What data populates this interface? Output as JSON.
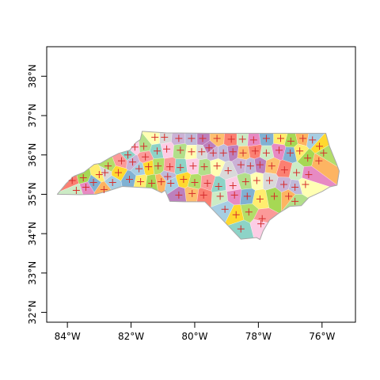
{
  "map": {
    "x_ticks": [
      {
        "lon": -84,
        "label": "84°W"
      },
      {
        "lon": -82,
        "label": "82°W"
      },
      {
        "lon": -80,
        "label": "80°W"
      },
      {
        "lon": -78,
        "label": "78°W"
      },
      {
        "lon": -76,
        "label": "76°W"
      }
    ],
    "y_ticks": [
      {
        "lat": 32,
        "label": "32°N"
      },
      {
        "lat": 33,
        "label": "33°N"
      },
      {
        "lat": 34,
        "label": "34°N"
      },
      {
        "lat": 35,
        "label": "35°N"
      },
      {
        "lat": 36,
        "label": "36°N"
      },
      {
        "lat": 37,
        "label": "37°N"
      },
      {
        "lat": 38,
        "label": "38°N"
      }
    ],
    "xlim": [
      -84.65,
      -74.95
    ],
    "ylim": [
      31.75,
      38.75
    ],
    "palette": [
      "#8dd3c7",
      "#ffffb3",
      "#bebada",
      "#fb8072",
      "#80b1d3",
      "#fdb462",
      "#b3de69",
      "#fccde5",
      "#d9d9d9",
      "#bc80bd",
      "#ccebc5",
      "#ffed6f",
      "#a6cee3",
      "#fb9a99",
      "#b2df8a",
      "#cab2d6",
      "#fdbf6f",
      "#e78ac3",
      "#a6d854",
      "#ffd92f"
    ],
    "state_outline": [
      [
        -84.32,
        35.0
      ],
      [
        -84.03,
        35.28
      ],
      [
        -83.8,
        35.46
      ],
      [
        -83.48,
        35.56
      ],
      [
        -83.16,
        35.76
      ],
      [
        -82.96,
        35.79
      ],
      [
        -82.64,
        35.94
      ],
      [
        -82.39,
        36.04
      ],
      [
        -82.04,
        36.12
      ],
      [
        -81.84,
        36.32
      ],
      [
        -81.71,
        36.39
      ],
      [
        -81.65,
        36.6
      ],
      [
        -80.9,
        36.56
      ],
      [
        -79.5,
        36.55
      ],
      [
        -78.0,
        36.55
      ],
      [
        -76.9,
        36.55
      ],
      [
        -75.88,
        36.55
      ],
      [
        -75.77,
        36.23
      ],
      [
        -75.55,
        35.79
      ],
      [
        -75.46,
        35.59
      ],
      [
        -75.53,
        35.23
      ],
      [
        -75.75,
        35.19
      ],
      [
        -76.0,
        35.07
      ],
      [
        -76.41,
        34.92
      ],
      [
        -76.65,
        34.71
      ],
      [
        -77.02,
        34.69
      ],
      [
        -77.36,
        34.52
      ],
      [
        -77.65,
        34.34
      ],
      [
        -77.85,
        34.07
      ],
      [
        -77.95,
        33.85
      ],
      [
        -78.06,
        33.9
      ],
      [
        -78.55,
        33.86
      ],
      [
        -79.07,
        34.3
      ],
      [
        -79.46,
        34.63
      ],
      [
        -79.68,
        34.81
      ],
      [
        -80.32,
        34.81
      ],
      [
        -80.78,
        34.82
      ],
      [
        -80.93,
        35.1
      ],
      [
        -81.04,
        35.04
      ],
      [
        -81.35,
        35.16
      ],
      [
        -82.28,
        35.2
      ],
      [
        -82.77,
        35.07
      ],
      [
        -83.11,
        35.0
      ],
      [
        -83.62,
        34.99
      ],
      [
        -84.32,
        35.0
      ]
    ],
    "centroids": [
      [
        -83.85,
        35.35
      ],
      [
        -83.72,
        35.1
      ],
      [
        -83.42,
        35.18
      ],
      [
        -83.18,
        35.3
      ],
      [
        -83.0,
        35.5
      ],
      [
        -83.5,
        35.42
      ],
      [
        -82.85,
        35.12
      ],
      [
        -82.58,
        35.3
      ],
      [
        -82.4,
        35.55
      ],
      [
        -82.72,
        35.72
      ],
      [
        -82.3,
        35.85
      ],
      [
        -82.1,
        36.0
      ],
      [
        -81.88,
        36.2
      ],
      [
        -81.6,
        36.22
      ],
      [
        -81.25,
        36.45
      ],
      [
        -80.95,
        36.45
      ],
      [
        -80.5,
        36.42
      ],
      [
        -80.1,
        36.42
      ],
      [
        -79.75,
        36.42
      ],
      [
        -79.3,
        36.42
      ],
      [
        -78.85,
        36.4
      ],
      [
        -78.5,
        36.4
      ],
      [
        -78.15,
        36.38
      ],
      [
        -77.75,
        36.42
      ],
      [
        -77.3,
        36.42
      ],
      [
        -76.98,
        36.35
      ],
      [
        -76.6,
        36.42
      ],
      [
        -76.3,
        36.38
      ],
      [
        -76.08,
        36.22
      ],
      [
        -75.95,
        36.05
      ],
      [
        -81.55,
        35.95
      ],
      [
        -81.18,
        36.1
      ],
      [
        -80.88,
        36.15
      ],
      [
        -80.45,
        36.12
      ],
      [
        -80.1,
        36.08
      ],
      [
        -79.78,
        36.08
      ],
      [
        -79.42,
        36.05
      ],
      [
        -79.1,
        36.05
      ],
      [
        -78.8,
        36.08
      ],
      [
        -78.48,
        36.05
      ],
      [
        -78.1,
        36.1
      ],
      [
        -77.75,
        36.05
      ],
      [
        -77.35,
        36.12
      ],
      [
        -77.0,
        36.05
      ],
      [
        -76.7,
        36.1
      ],
      [
        -76.45,
        35.92
      ],
      [
        -76.1,
        35.85
      ],
      [
        -81.75,
        35.65
      ],
      [
        -81.45,
        35.7
      ],
      [
        -81.15,
        35.72
      ],
      [
        -80.78,
        35.7
      ],
      [
        -80.45,
        35.68
      ],
      [
        -80.05,
        35.72
      ],
      [
        -79.7,
        35.7
      ],
      [
        -79.3,
        35.72
      ],
      [
        -78.95,
        35.6
      ],
      [
        -78.55,
        35.75
      ],
      [
        -78.25,
        35.72
      ],
      [
        -77.95,
        35.75
      ],
      [
        -77.58,
        35.72
      ],
      [
        -77.18,
        35.62
      ],
      [
        -76.8,
        35.55
      ],
      [
        -76.42,
        35.5
      ],
      [
        -82.05,
        35.38
      ],
      [
        -81.7,
        35.32
      ],
      [
        -81.35,
        35.28
      ],
      [
        -81.05,
        35.32
      ],
      [
        -80.75,
        35.28
      ],
      [
        -80.35,
        35.38
      ],
      [
        -80.0,
        35.3
      ],
      [
        -79.6,
        35.28
      ],
      [
        -79.25,
        35.2
      ],
      [
        -78.8,
        35.22
      ],
      [
        -78.4,
        35.32
      ],
      [
        -78.05,
        35.35
      ],
      [
        -77.65,
        35.35
      ],
      [
        -77.2,
        35.25
      ],
      [
        -76.85,
        35.18
      ],
      [
        -80.5,
        34.98
      ],
      [
        -80.08,
        35.02
      ],
      [
        -79.72,
        34.98
      ],
      [
        -79.2,
        34.95
      ],
      [
        -78.75,
        34.98
      ],
      [
        -78.35,
        34.95
      ],
      [
        -77.95,
        34.88
      ],
      [
        -77.5,
        34.95
      ],
      [
        -77.05,
        34.95
      ],
      [
        -79.05,
        34.62
      ],
      [
        -78.7,
        34.48
      ],
      [
        -78.3,
        34.55
      ],
      [
        -77.88,
        34.38
      ],
      [
        -78.55,
        34.12
      ],
      [
        -77.92,
        34.25
      ],
      [
        -76.85,
        34.82
      ],
      [
        -76.52,
        35.25
      ],
      [
        -82.82,
        35.55
      ],
      [
        -81.95,
        35.82
      ],
      [
        -80.85,
        35.45
      ],
      [
        -79.55,
        36.18
      ]
    ]
  }
}
